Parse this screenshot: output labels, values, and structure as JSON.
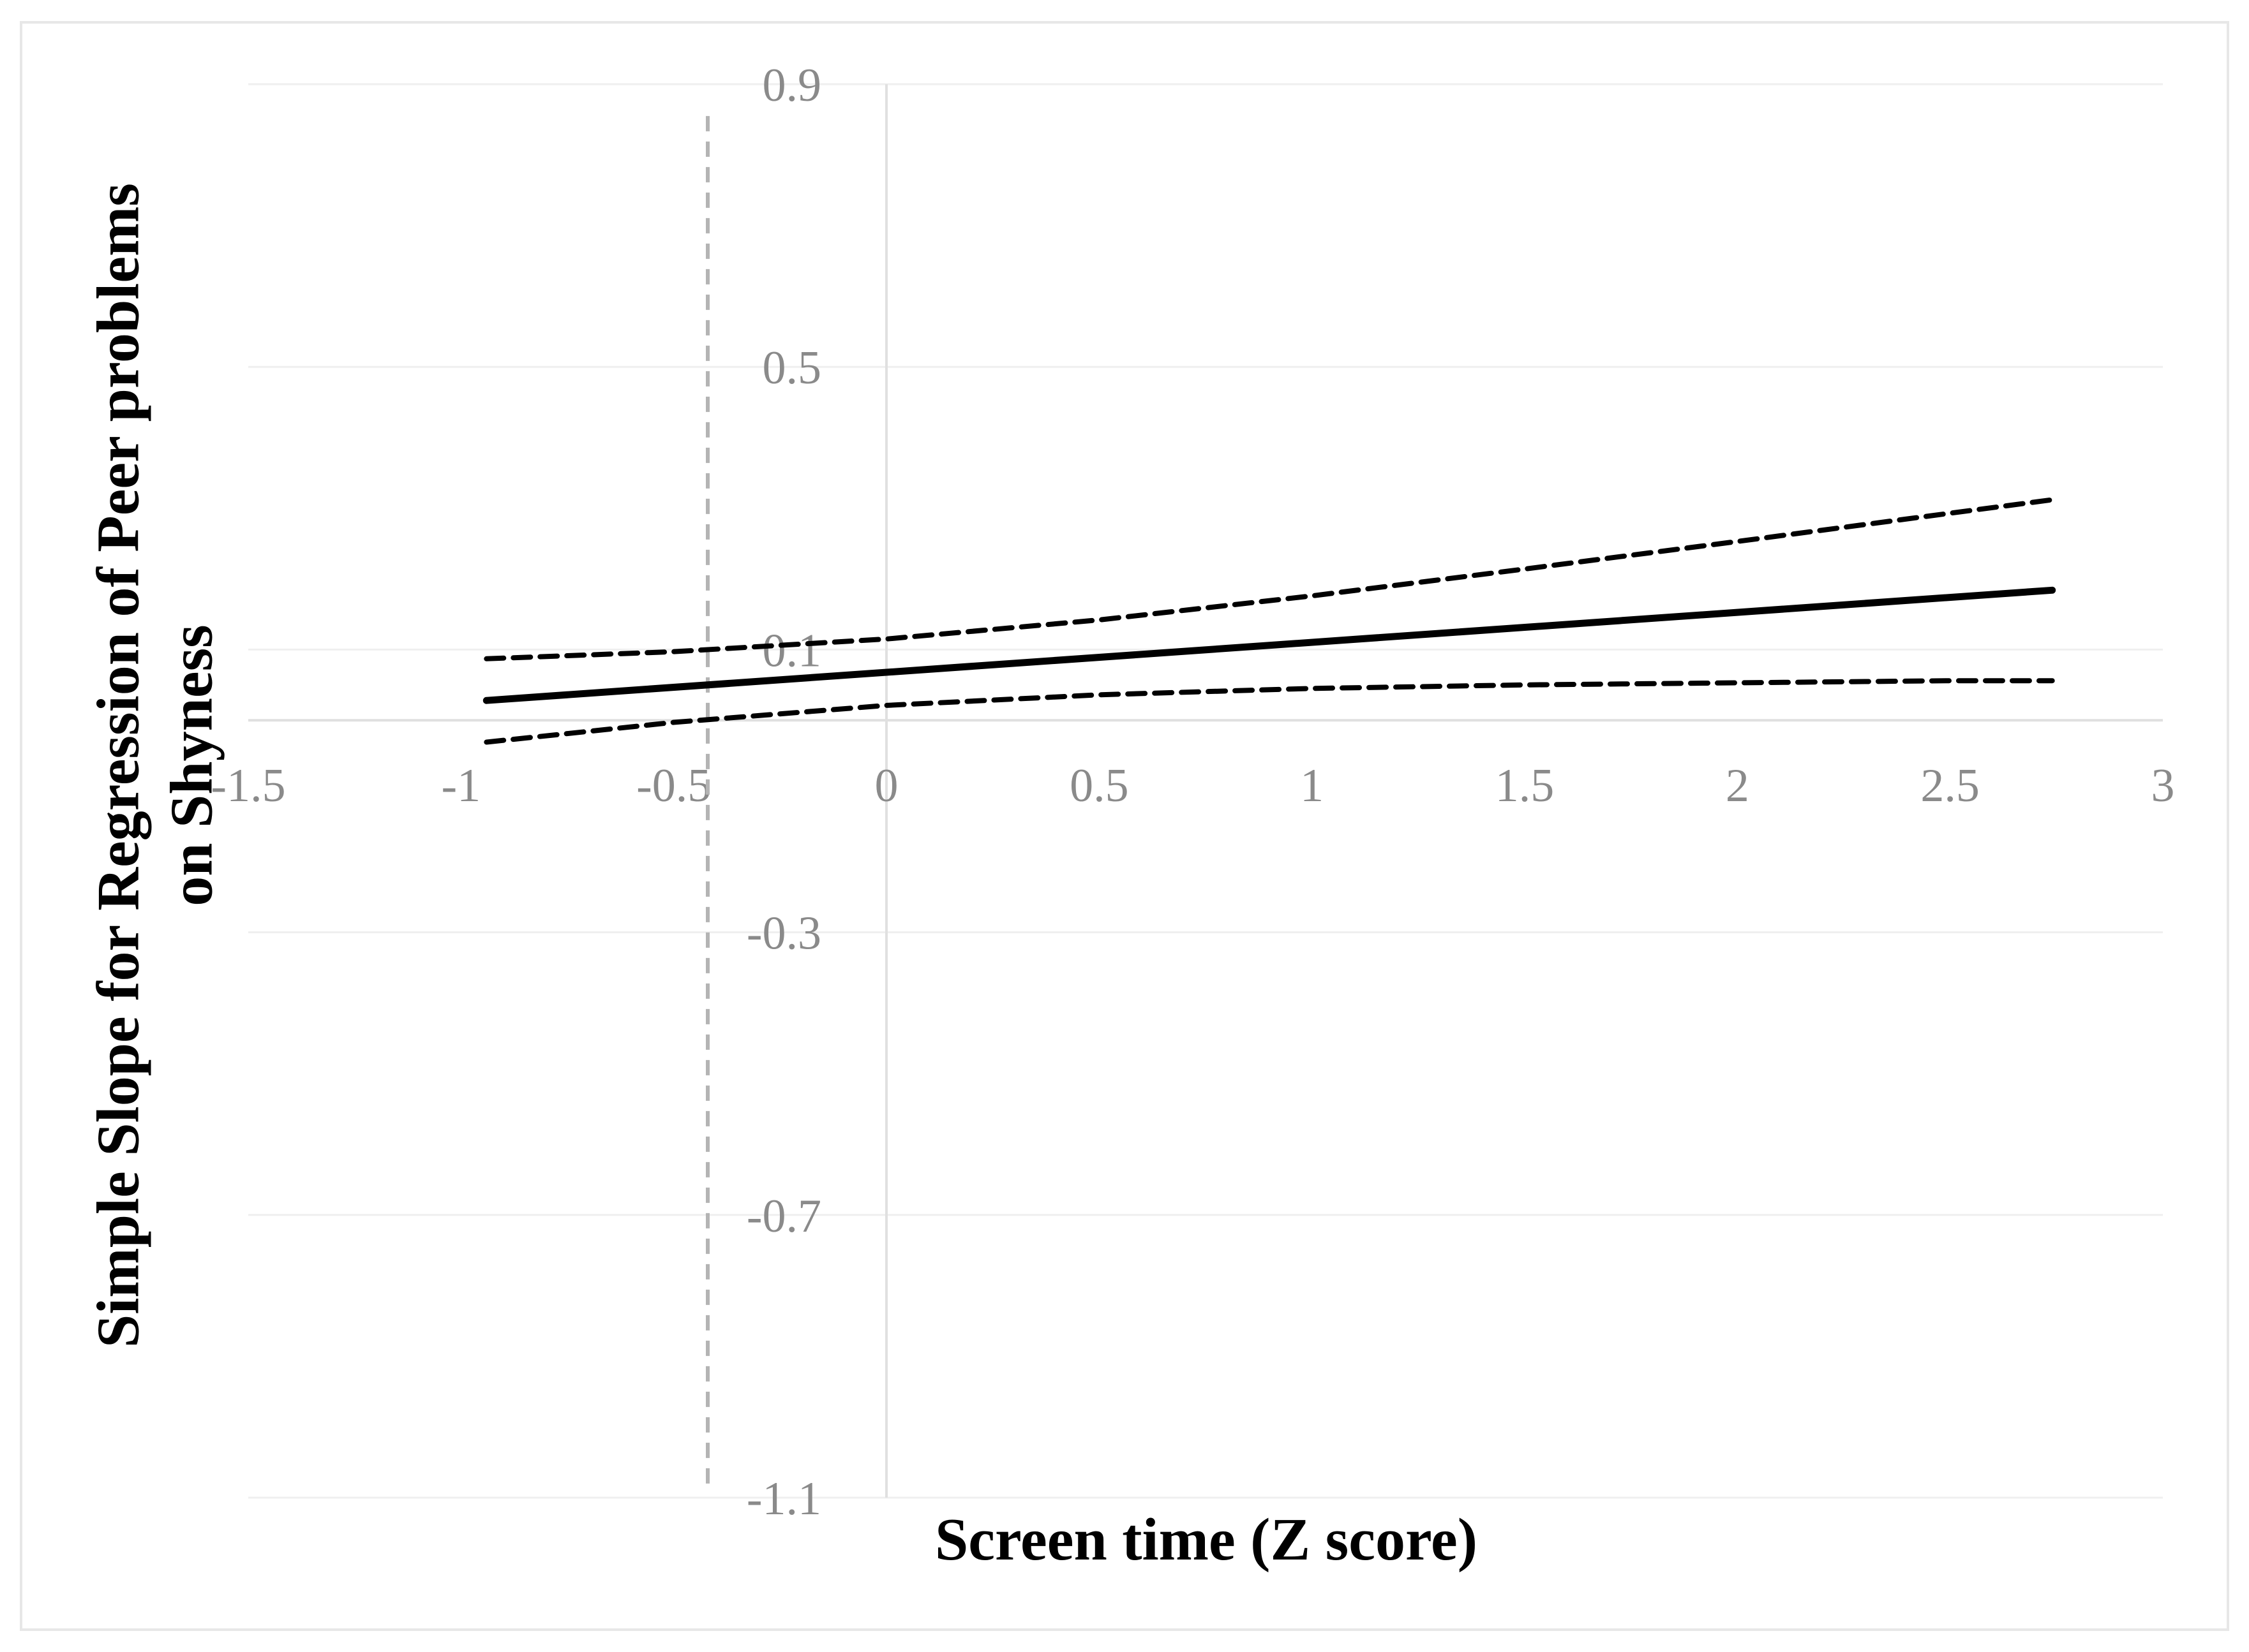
{
  "chart_data": {
    "type": "line",
    "title": "",
    "xlabel": "Screen time (Z score)",
    "ylabel": "Simple Slope for Regression of Peer problems on Shyness",
    "ylabel_lines": [
      "Simple Slope for Regression of Peer problems",
      "on Shyness"
    ],
    "xlim": [
      -1.5,
      3
    ],
    "ylim": [
      -1.1,
      0.9
    ],
    "xticks": {
      "values": [
        -1.5,
        -1,
        -0.5,
        0,
        0.5,
        1,
        1.5,
        2,
        2.5,
        3
      ],
      "labels": [
        "-1.5",
        "-1",
        "-0.5",
        "0",
        "0.5",
        "1",
        "1.5",
        "2",
        "2.5",
        "3"
      ]
    },
    "yticks": {
      "values": [
        0.9,
        0.5,
        0.1,
        -0.3,
        -0.7,
        -1.1
      ],
      "labels": [
        "0.9",
        "0.5",
        "0.1",
        "-0.3",
        "-0.7",
        "-1.1"
      ]
    },
    "grid": "horizontal-only",
    "legend": "none",
    "series": [
      {
        "name": "confidence-band-upper",
        "line_style": "dashed",
        "color": "#000000",
        "points": [
          [
            -0.94,
            0.087
          ],
          [
            -0.5,
            0.097
          ],
          [
            0,
            0.115
          ],
          [
            0.5,
            0.142
          ],
          [
            1,
            0.176
          ],
          [
            1.5,
            0.214
          ],
          [
            2,
            0.253
          ],
          [
            2.5,
            0.293
          ],
          [
            2.74,
            0.312
          ]
        ]
      },
      {
        "name": "simple-slope-line",
        "line_style": "solid",
        "color": "#000000",
        "points": [
          [
            -0.94,
            0.028
          ],
          [
            2.74,
            0.184
          ]
        ]
      },
      {
        "name": "confidence-band-lower",
        "line_style": "dashed",
        "color": "#000000",
        "points": [
          [
            -0.94,
            -0.031
          ],
          [
            -0.5,
            -0.003
          ],
          [
            0,
            0.021
          ],
          [
            0.5,
            0.036
          ],
          [
            1,
            0.045
          ],
          [
            1.5,
            0.05
          ],
          [
            2,
            0.053
          ],
          [
            2.5,
            0.056
          ],
          [
            2.74,
            0.056
          ]
        ]
      }
    ],
    "reference_line": {
      "x": -0.42,
      "y_from": -1.08,
      "y_to": 0.855,
      "style": "dashed",
      "color": "#b4b4b4"
    },
    "colors": {
      "line": "#000000",
      "tick_label": "#8a8a8a",
      "gridline": "#efefef",
      "axis_line": "#e0e0e0",
      "border": "#e7e7e7",
      "background": "#ffffff"
    }
  }
}
